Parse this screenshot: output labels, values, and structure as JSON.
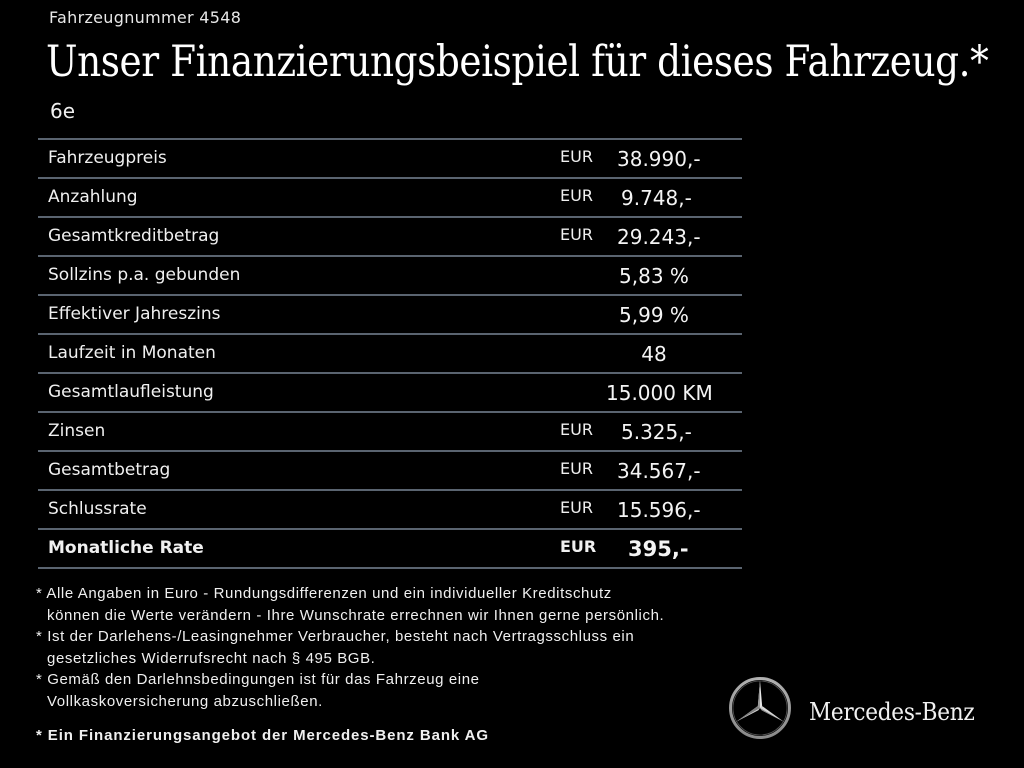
{
  "header": {
    "vehicle_number": "Fahrzeugnummer 4548",
    "title": "Unser Finanzierungsbeispiel für dieses Fahrzeug.*",
    "model": "6e"
  },
  "table": {
    "rows": [
      {
        "label": "Fahrzeugpreis",
        "currency": "EUR",
        "value": "38.990,-"
      },
      {
        "label": "Anzahlung",
        "currency": "EUR",
        "value": "9.748,-"
      },
      {
        "label": "Gesamtkreditbetrag",
        "currency": "EUR",
        "value": "29.243,-"
      },
      {
        "label": "Sollzins p.a. gebunden",
        "currency": "",
        "value": "5,83 %"
      },
      {
        "label": "Effektiver Jahreszins",
        "currency": "",
        "value": "5,99 %"
      },
      {
        "label": "Laufzeit in Monaten",
        "currency": "",
        "value": "48"
      },
      {
        "label": "Gesamtlaufleistung",
        "currency": "",
        "value": "15.000 KM"
      },
      {
        "label": "Zinsen",
        "currency": "EUR",
        "value": "5.325,-"
      },
      {
        "label": "Gesamtbetrag",
        "currency": "EUR",
        "value": "34.567,-"
      },
      {
        "label": "Schlussrate",
        "currency": "EUR",
        "value": "15.596,-"
      },
      {
        "label": "Monatliche Rate",
        "currency": "EUR",
        "value": "395,-"
      }
    ]
  },
  "footnotes": {
    "lines": [
      "* Alle Angaben in Euro - Rundungsdifferenzen und ein individueller Kreditschutz",
      "können die Werte verändern - Ihre Wunschrate errechnen wir Ihnen gerne persönlich.",
      "* Ist der Darlehens-/Leasingnehmer Verbraucher, besteht nach Vertragsschluss ein",
      "gesetzliches Widerrufsrecht nach § 495 BGB.",
      "* Gemäß den Darlehnsbedingungen ist für das Fahrzeug eine",
      "Vollkaskoversicherung abzuschließen."
    ],
    "offer": "* Ein Finanzierungsangebot der Mercedes-Benz Bank AG"
  },
  "brand": {
    "logo_icon": "mercedes-star-icon",
    "name": "Mercedes-Benz"
  }
}
